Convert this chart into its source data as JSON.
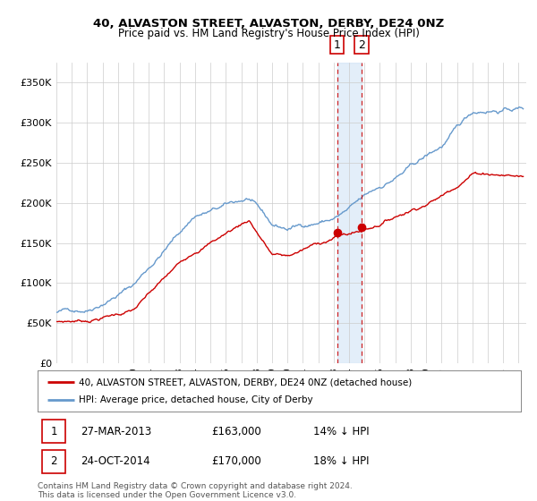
{
  "title1": "40, ALVASTON STREET, ALVASTON, DERBY, DE24 0NZ",
  "title2": "Price paid vs. HM Land Registry's House Price Index (HPI)",
  "ylim": [
    0,
    375000
  ],
  "yticks": [
    0,
    50000,
    100000,
    150000,
    200000,
    250000,
    300000,
    350000
  ],
  "ytick_labels": [
    "£0",
    "£50K",
    "£100K",
    "£150K",
    "£200K",
    "£250K",
    "£300K",
    "£350K"
  ],
  "sale1": {
    "date": "27-MAR-2013",
    "price": 163000,
    "pct": "14%",
    "label": "1",
    "year": 2013.23
  },
  "sale2": {
    "date": "24-OCT-2014",
    "price": 170000,
    "pct": "18%",
    "label": "2",
    "year": 2014.81
  },
  "legend_line1": "40, ALVASTON STREET, ALVASTON, DERBY, DE24 0NZ (detached house)",
  "legend_line2": "HPI: Average price, detached house, City of Derby",
  "footnote": "Contains HM Land Registry data © Crown copyright and database right 2024.\nThis data is licensed under the Open Government Licence v3.0.",
  "line_color_red": "#cc0000",
  "line_color_blue": "#6699cc",
  "bg_color": "#ffffff",
  "grid_color": "#cccccc",
  "xlim_left": 1995,
  "xlim_right": 2025.5
}
